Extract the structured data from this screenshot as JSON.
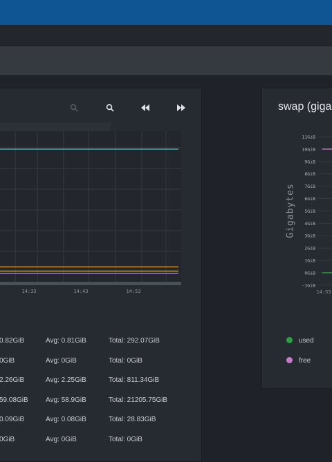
{
  "memory_panel": {
    "x_ticks": [
      "14:33",
      "14:43",
      "14:53"
    ],
    "series_colors": [
      "#4fc3c7",
      "#e6a23c",
      "#c2b05a",
      "#e05a9a",
      "#9b6ad6"
    ],
    "stats": [
      {
        "max": "0.82GiB",
        "avg": "Avg: 0.81GiB",
        "total": "Total: 292.07GiB"
      },
      {
        "max": "0GiB",
        "avg": "Avg: 0GiB",
        "total": "Total: 0GiB"
      },
      {
        "max": "2.26GiB",
        "avg": "Avg: 2.25GiB",
        "total": "Total: 811.34GiB"
      },
      {
        "max": "59.08GiB",
        "avg": "Avg: 58.9GiB",
        "total": "Total: 21205.75GiB"
      },
      {
        "max": "0.09GiB",
        "avg": "Avg: 0.08GiB",
        "total": "Total: 28.83GiB"
      },
      {
        "max": "0GiB",
        "avg": "Avg: 0GiB",
        "total": "Total: 0GiB"
      }
    ]
  },
  "toolbar_icons": [
    "zoom-out-icon",
    "zoom-in-icon",
    "rewind-icon",
    "fast-forward-icon"
  ],
  "swap_panel": {
    "title": "swap (giga",
    "ylabel": "Gigabytes",
    "y_ticks": [
      "11GiB",
      "10GiB",
      "9GiB",
      "8GiB",
      "7GiB",
      "6GiB",
      "5GiB",
      "4GiB",
      "3GiB",
      "2GiB",
      "1GiB",
      "0GiB",
      "-1GiB"
    ],
    "x_tick": "14:53",
    "legend": [
      {
        "label": "used",
        "color": "#2ea043"
      },
      {
        "label": "free",
        "color": "#c77dcc"
      }
    ]
  },
  "chart_data": [
    {
      "type": "line",
      "title": "",
      "xlabel": "",
      "ylabel": "",
      "x": [
        "14:33",
        "14:43",
        "14:53"
      ],
      "grid": true,
      "series": [
        {
          "values": [
            59.08,
            59.08,
            59.08
          ],
          "color": "#4fc3c7"
        },
        {
          "values": [
            2.26,
            2.26,
            2.26
          ],
          "color": "#e6a23c"
        },
        {
          "values": [
            0.82,
            0.82,
            0.82
          ],
          "color": "#c2b05a"
        },
        {
          "values": [
            0.09,
            0.09,
            0.09
          ],
          "color": "#e05a9a"
        },
        {
          "values": [
            0,
            0,
            0
          ],
          "color": "#9b6ad6"
        }
      ]
    },
    {
      "type": "line",
      "title": "swap (giga",
      "ylabel": "Gigabytes",
      "x": [
        "14:53"
      ],
      "ylim": [
        -1,
        11
      ],
      "grid": true,
      "series": [
        {
          "name": "used",
          "values": [
            0
          ],
          "color": "#2ea043"
        },
        {
          "name": "free",
          "values": [
            10
          ],
          "color": "#c77dcc"
        }
      ]
    }
  ]
}
